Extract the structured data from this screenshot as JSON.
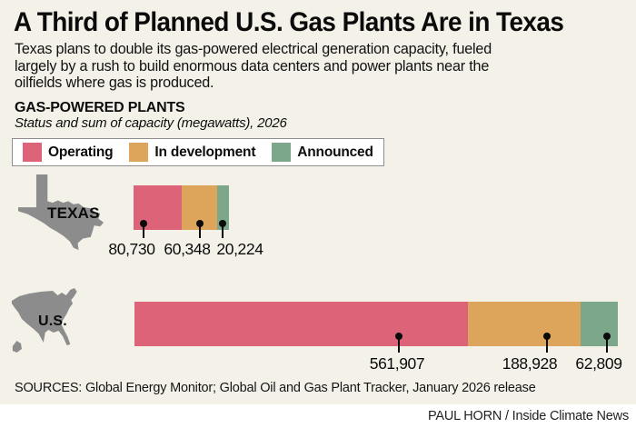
{
  "header": {
    "title": "A Third of Planned U.S. Gas Plants Are in Texas",
    "subtitle_lines": [
      "Texas plans to double its gas-powered electrical generation capacity, fueled",
      "largely by a rush to build enormous data centers and power plants near the",
      "oilfields where gas is produced."
    ]
  },
  "chart_data": {
    "type": "bar",
    "stacked": true,
    "title": "GAS-POWERED PLANTS",
    "subtitle": "Status and sum of capacity (megawatts), 2026",
    "unit": "megawatts",
    "year": "2026",
    "legend_position": "top",
    "legend": [
      {
        "label": "Operating",
        "color": "#dd6378"
      },
      {
        "label": "In development",
        "color": "#dda45c"
      },
      {
        "label": "Announced",
        "color": "#7ca78a"
      }
    ],
    "rows": [
      {
        "label": "TEXAS",
        "values": [
          80730,
          60348,
          20224
        ],
        "display": [
          "80,730",
          "60,348",
          "20,224"
        ]
      },
      {
        "label": "U.S.",
        "values": [
          561907,
          188928,
          62809
        ],
        "display": [
          "561,907",
          "188,928",
          "62,809"
        ]
      }
    ]
  },
  "footer": {
    "sources": "SOURCES: Global Energy Monitor; Global Oil and Gas Plant Tracker, January 2026 release",
    "credit": "PAUL HORN / Inside Climate News"
  },
  "colors": {
    "background": "#f4f2e8",
    "operating": "#dd6378",
    "in_development": "#dda45c",
    "announced": "#7ca78a",
    "map_gray": "#8c8c8c"
  }
}
